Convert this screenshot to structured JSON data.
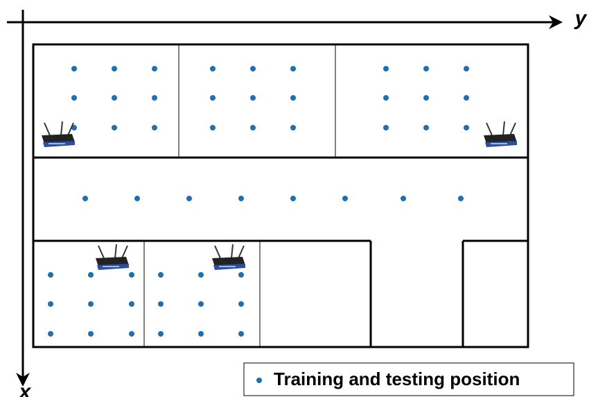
{
  "axes": {
    "y_label": "y",
    "x_label": "x"
  },
  "legend": {
    "label": "Training and testing position"
  }
}
